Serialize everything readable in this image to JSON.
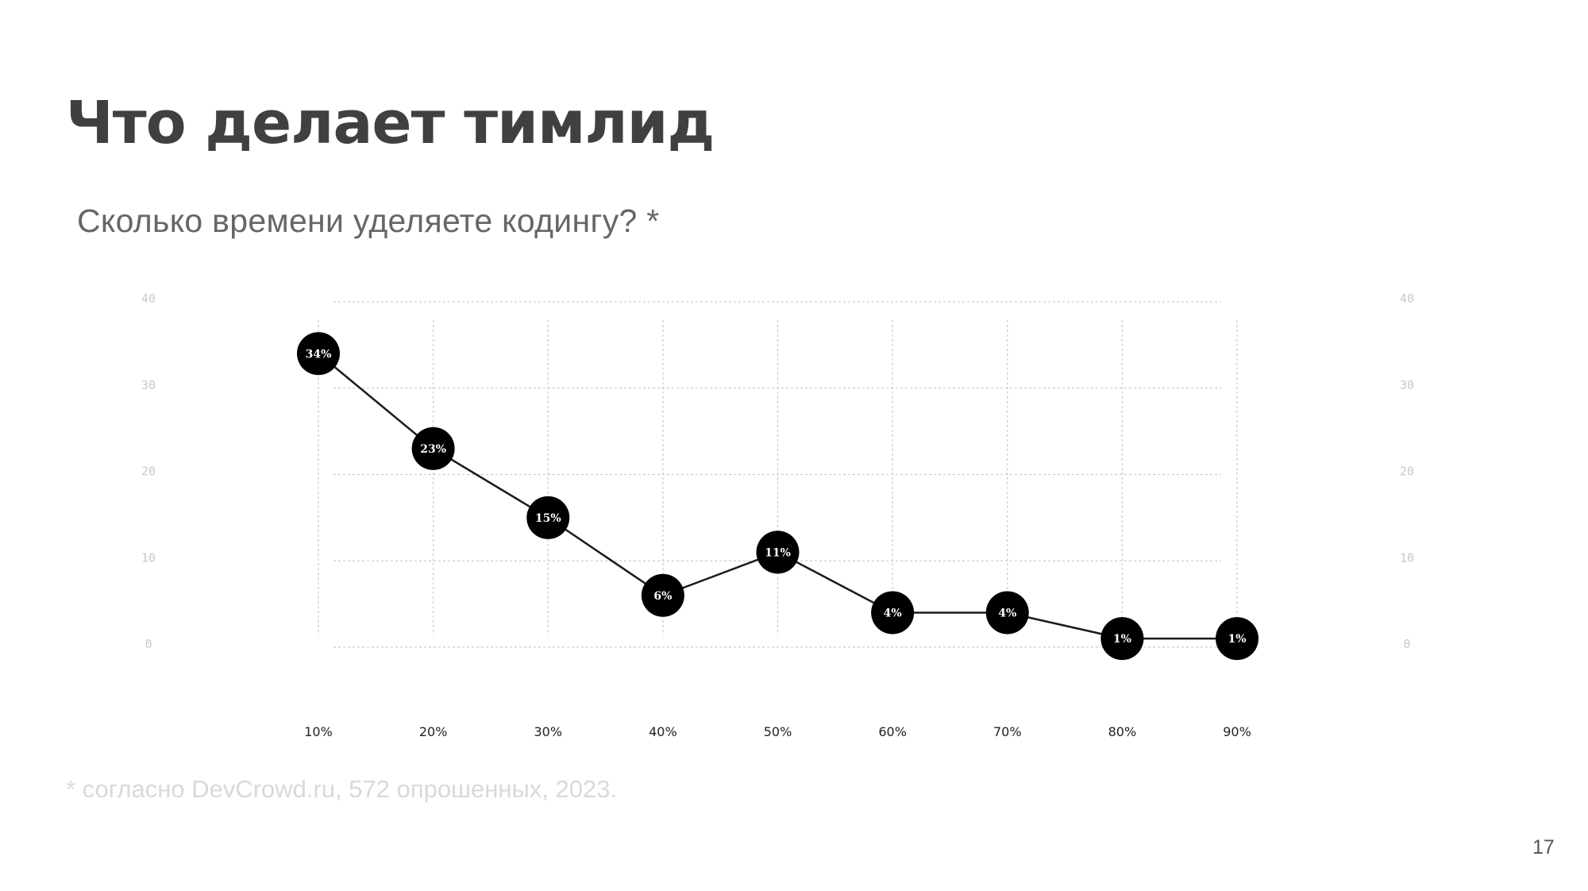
{
  "slide": {
    "title": "Что делает тимлид",
    "subtitle": "Сколько времени уделяете кодингу? *",
    "footnote": "* согласно DevCrowd.ru, 572 опрошенных, 2023.",
    "page_number": "17"
  },
  "colors": {
    "title": "#404040",
    "subtitle": "#666666",
    "footnote": "#d9d9d9",
    "grid": "#cccccc",
    "axis_ticks": "#c8c8c8",
    "line": "#1a1a1a",
    "marker": "#000000",
    "marker_label": "#ffffff",
    "x_labels": "#222222"
  },
  "chart_data": {
    "type": "line",
    "title": "Сколько времени уделяете кодингу? *",
    "xlabel": "",
    "ylabel": "",
    "categories": [
      "10%",
      "20%",
      "30%",
      "40%",
      "50%",
      "60%",
      "70%",
      "80%",
      "90%"
    ],
    "values": [
      34,
      23,
      15,
      6,
      11,
      4,
      4,
      1,
      1
    ],
    "point_labels": [
      "34%",
      "23%",
      "15%",
      "6%",
      "11%",
      "4%",
      "4%",
      "1%",
      "1%"
    ],
    "ylim": [
      0,
      40
    ],
    "y_ticks": [
      "0",
      "10",
      "20",
      "30",
      "40"
    ],
    "y_ticks_right": [
      "0",
      "10",
      "20",
      "30",
      "40"
    ],
    "grid": true,
    "legend": null,
    "markers": "filled black circles with value labels"
  }
}
